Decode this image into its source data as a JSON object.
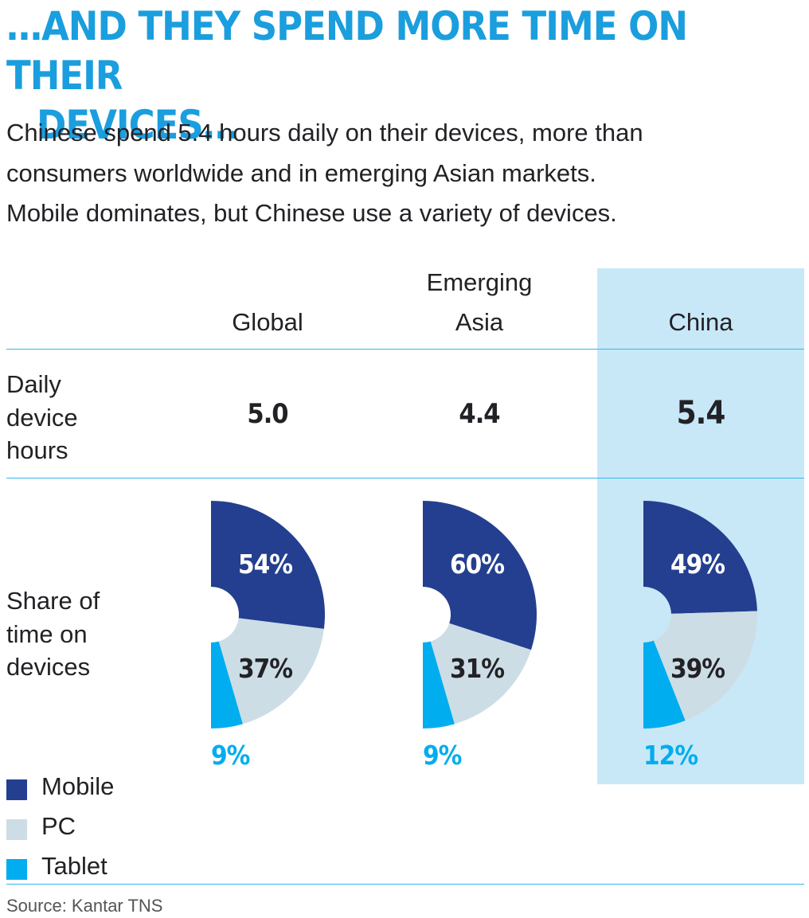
{
  "title_line1": "…and they spend more time on their",
  "title_line2": "devices…",
  "subtitle_line1": "Chinese spend 5.4 hours daily on their devices, more than",
  "subtitle_line2": "consumers worldwide and in emerging Asian markets.",
  "subtitle_line3": "Mobile dominates, but Chinese use a variety of devices.",
  "columns": [
    {
      "line1": "",
      "line2": "Global"
    },
    {
      "line1": "Emerging",
      "line2": "Asia"
    },
    {
      "line1": "",
      "line2": "China"
    }
  ],
  "rows": {
    "hours_label": [
      "Daily",
      "device",
      "hours"
    ],
    "share_label": [
      "Share of",
      "time on",
      "devices"
    ]
  },
  "source": "Source: Kantar TNS",
  "colors": {
    "mobile": "#243f8f",
    "pc": "#cddde6",
    "tablet": "#00adef",
    "highlight": "#c8e8f8",
    "title": "#1a9ede"
  },
  "chart_data": {
    "type": "table",
    "title": "…and they spend more time on their devices…",
    "categories": [
      "Global",
      "Emerging Asia",
      "China"
    ],
    "daily_device_hours": [
      "5.0",
      "4.4",
      "5.4"
    ],
    "share_of_time": {
      "type": "pie",
      "series": [
        {
          "name": "Mobile",
          "values": [
            54,
            60,
            49
          ],
          "labels": [
            "54%",
            "60%",
            "49%"
          ]
        },
        {
          "name": "PC",
          "values": [
            37,
            31,
            39
          ],
          "labels": [
            "37%",
            "31%",
            "39%"
          ]
        },
        {
          "name": "Tablet",
          "values": [
            9,
            9,
            12
          ],
          "labels": [
            "9%",
            "9%",
            "12%"
          ]
        }
      ]
    },
    "highlight": "China",
    "legend": [
      "Mobile",
      "PC",
      "Tablet"
    ]
  }
}
